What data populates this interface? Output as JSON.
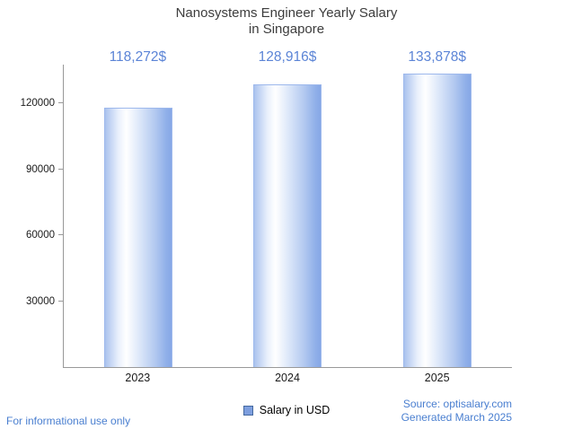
{
  "title": {
    "line1": "Nanosystems Engineer Yearly Salary",
    "line2": "in Singapore"
  },
  "chart_data": {
    "type": "bar",
    "title": "Nanosystems Engineer Yearly Salary in Singapore",
    "categories": [
      "2023",
      "2024",
      "2025"
    ],
    "values": [
      118272,
      128916,
      133878
    ],
    "value_labels": [
      "118,272$",
      "128,916$",
      "133,878$"
    ],
    "series_name": "Salary in USD",
    "xlabel": "",
    "ylabel": "",
    "y_ticks": [
      30000,
      60000,
      90000,
      120000
    ],
    "ylim": [
      0,
      138000
    ],
    "grid": false,
    "legend_position": "bottom",
    "bar_color_edge": "#86a7e6",
    "bar_color_center": "#ffffff",
    "value_label_color": "#5b84d6"
  },
  "legend": {
    "label": "Salary in USD"
  },
  "footer": {
    "disclaimer": "For informational use only",
    "source": "Source: optisalary.com",
    "generated": "Generated March 2025"
  }
}
